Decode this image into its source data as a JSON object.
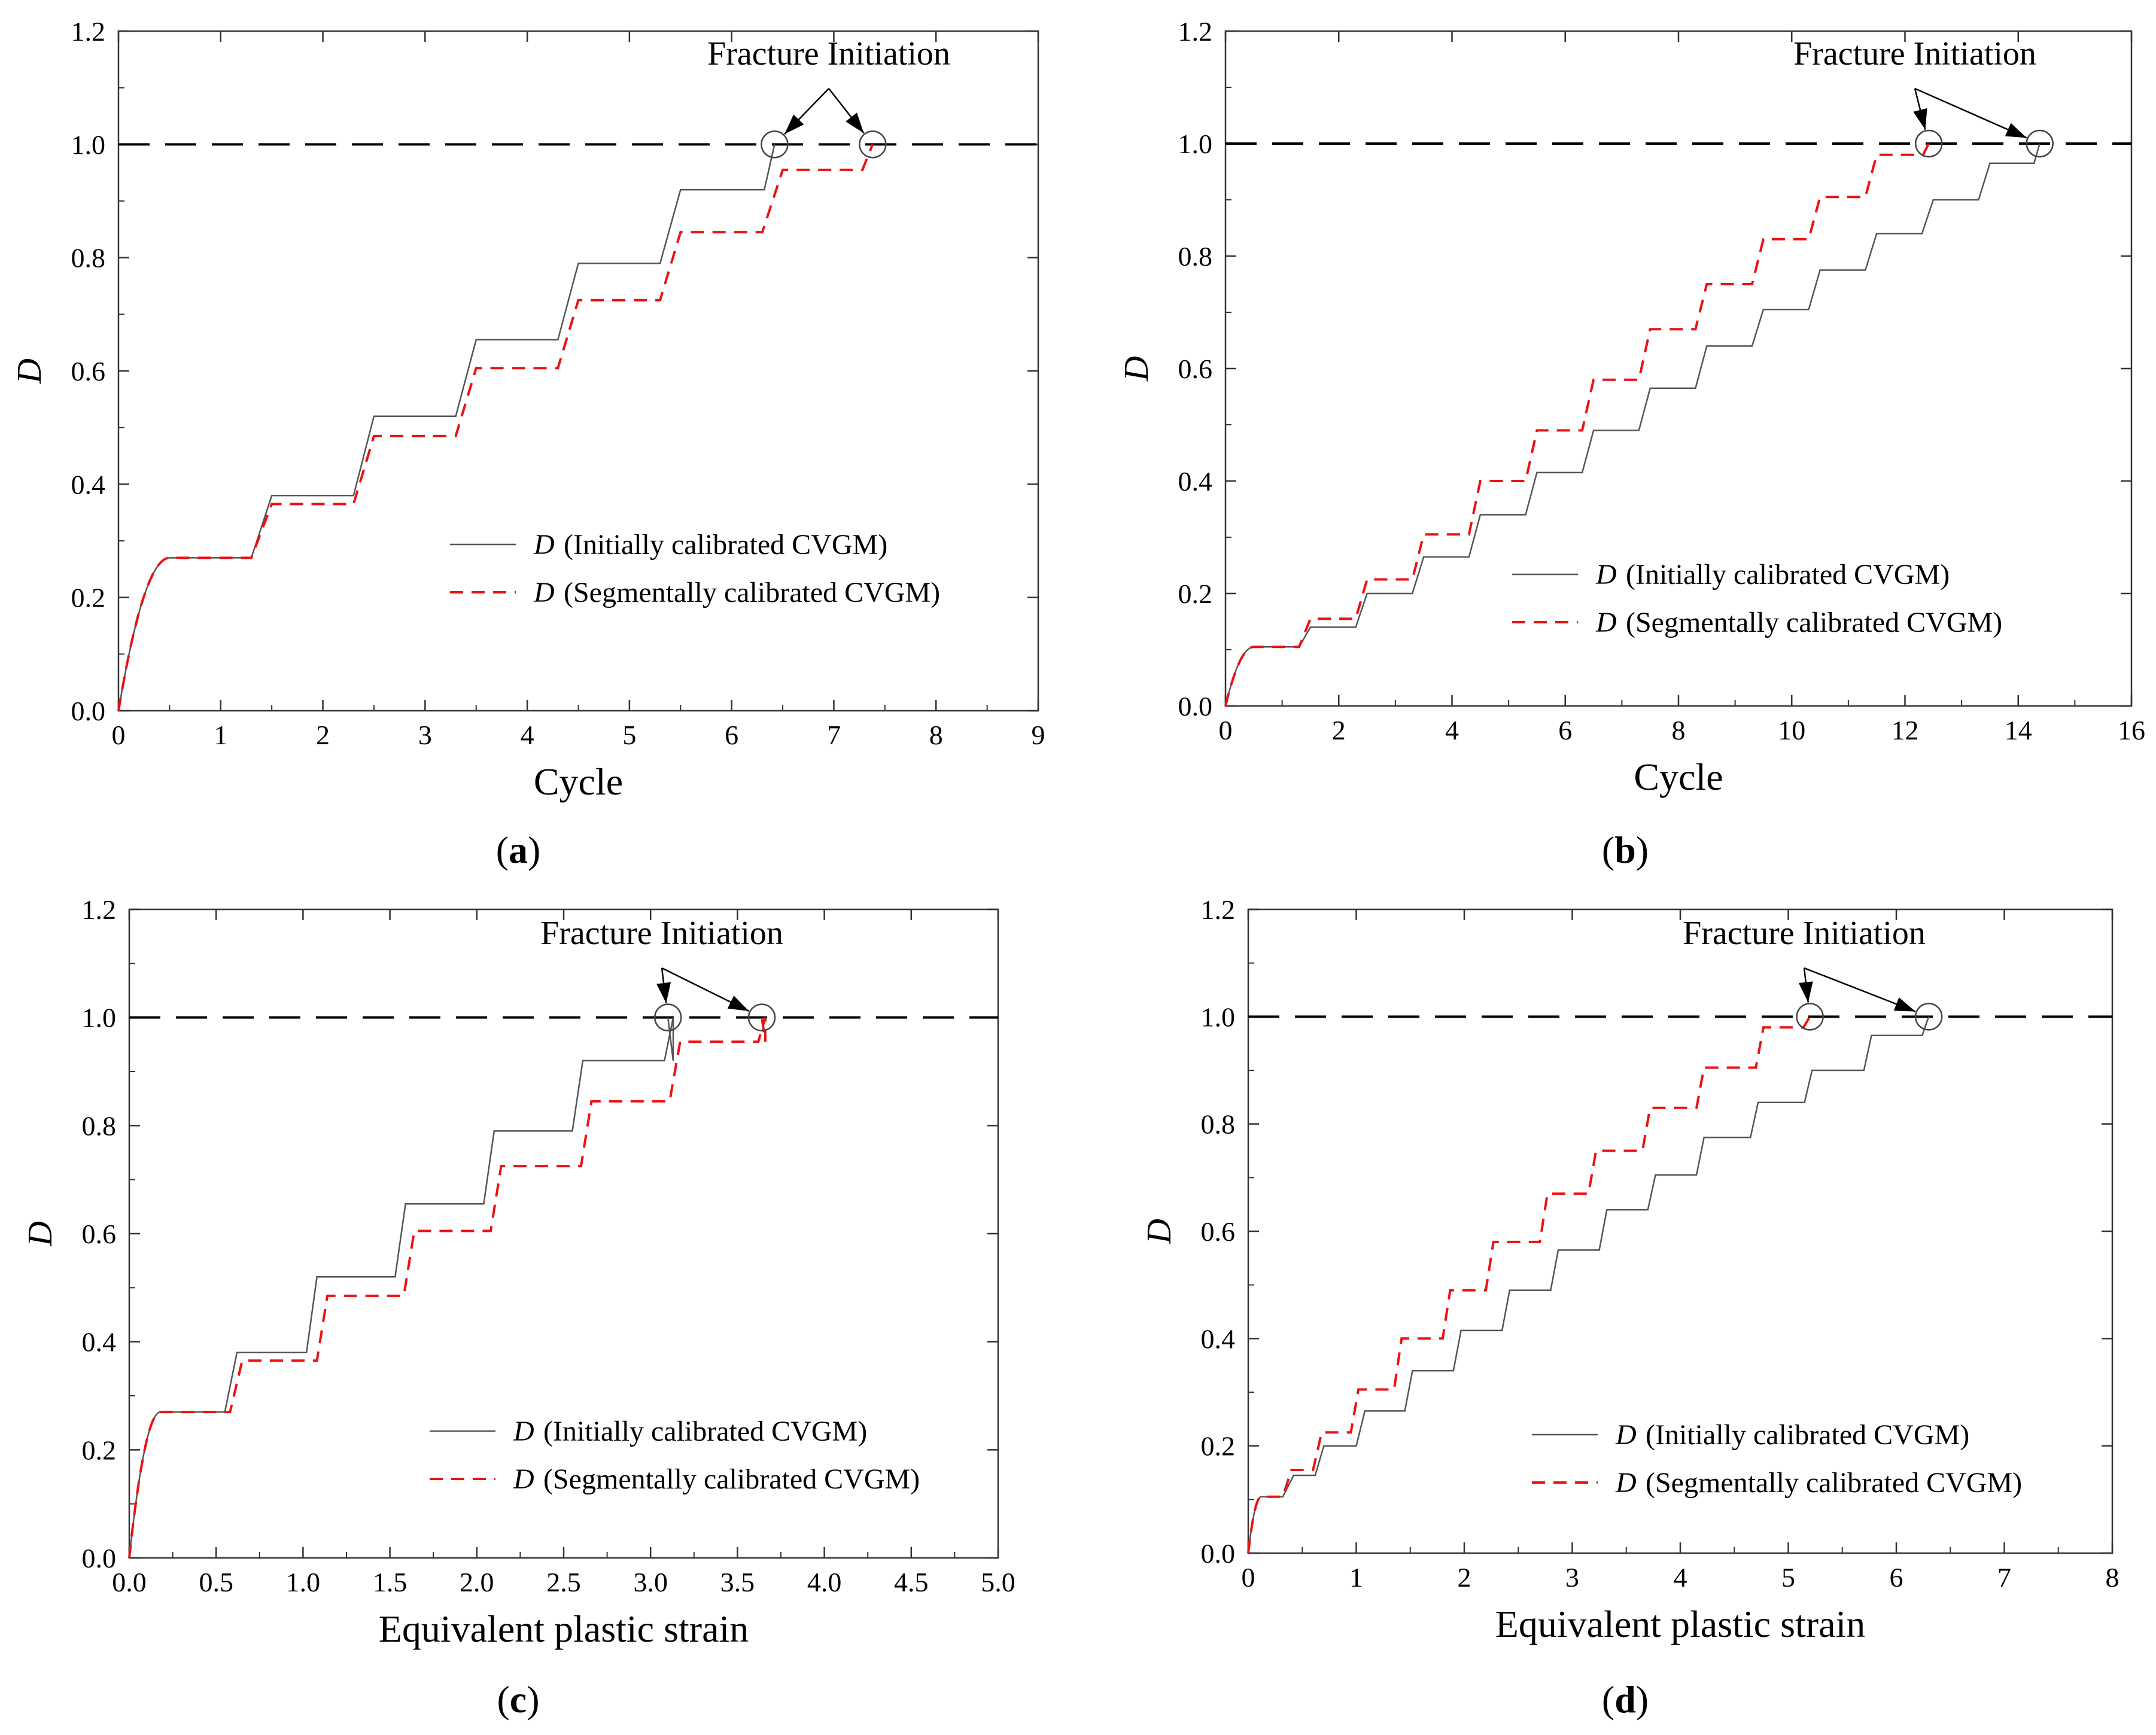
{
  "figure": {
    "description_labels": {
      "threshold_value": 1.0
    }
  },
  "chart_data": [
    {
      "id": "a",
      "type": "line",
      "panel_label": "a",
      "xlabel": "Cycle",
      "ylabel": "D",
      "xlim": [
        0,
        9
      ],
      "ylim": [
        0,
        1.2
      ],
      "xticks": [
        0,
        1,
        2,
        3,
        4,
        5,
        6,
        7,
        8,
        9
      ],
      "xtick_labels": [
        "0",
        "1",
        "2",
        "3",
        "4",
        "5",
        "6",
        "7",
        "8",
        "9"
      ],
      "yticks": [
        0,
        0.2,
        0.4,
        0.6,
        0.8,
        1.0,
        1.2
      ],
      "ytick_labels": [
        "0.0",
        "0.2",
        "0.4",
        "0.6",
        "0.8",
        "1.0",
        "1.2"
      ],
      "threshold": 1.0,
      "annotation": "Fracture Initiation",
      "legend": {
        "placement": "center-right",
        "symbol": "D",
        "entries": [
          "(Initially calibrated CVGM)",
          "(Segmentally calibrated CVGM)"
        ]
      },
      "series": [
        {
          "name": "D (Initially calibrated CVGM)",
          "style": "solid",
          "color": "#555555",
          "start_value": 0.0,
          "initial_curve": {
            "x_end": 0.5,
            "y_end": 0.27
          },
          "plateaus": [
            0.27,
            0.38,
            0.52,
            0.655,
            0.79,
            0.92
          ],
          "step_start_offset": 0.3,
          "step_end_offset": 0.5,
          "fracture_x": 6.42
        },
        {
          "name": "D (Segmentally calibrated CVGM)",
          "style": "dashed",
          "color": "#ee1111",
          "start_value": 0.0,
          "initial_curve": {
            "x_end": 0.5,
            "y_end": 0.27
          },
          "plateaus": [
            0.27,
            0.365,
            0.485,
            0.605,
            0.725,
            0.845,
            0.955
          ],
          "step_start_offset": 0.3,
          "step_end_offset": 0.5,
          "fracture_x": 7.38
        }
      ]
    },
    {
      "id": "b",
      "type": "line",
      "panel_label": "b",
      "xlabel": "Cycle",
      "ylabel": "D",
      "xlim": [
        0,
        16
      ],
      "ylim": [
        0,
        1.2
      ],
      "xticks": [
        0,
        2,
        4,
        6,
        8,
        10,
        12,
        14,
        16
      ],
      "xtick_labels": [
        "0",
        "2",
        "4",
        "6",
        "8",
        "10",
        "12",
        "14",
        "16"
      ],
      "yticks": [
        0,
        0.2,
        0.4,
        0.6,
        0.8,
        1.0,
        1.2
      ],
      "ytick_labels": [
        "0.0",
        "0.2",
        "0.4",
        "0.6",
        "0.8",
        "1.0",
        "1.2"
      ],
      "threshold": 1.0,
      "annotation": "Fracture Initiation",
      "legend": {
        "placement": "center-right",
        "symbol": "D",
        "entries": [
          "(Initially calibrated CVGM)",
          "(Segmentally calibrated CVGM)"
        ]
      },
      "series": [
        {
          "name": "D (Initially calibrated CVGM)",
          "style": "solid",
          "color": "#555555",
          "start_value": 0.0,
          "initial_curve": {
            "x_end": 0.5,
            "y_end": 0.105
          },
          "plateaus": [
            0.105,
            0.14,
            0.2,
            0.265,
            0.34,
            0.415,
            0.49,
            0.565,
            0.64,
            0.705,
            0.775,
            0.84,
            0.9,
            0.965
          ],
          "step_start_offset": 0.3,
          "step_end_offset": 0.5,
          "fracture_x": 14.38
        },
        {
          "name": "D (Segmentally calibrated CVGM)",
          "style": "dashed",
          "color": "#ee1111",
          "start_value": 0.0,
          "initial_curve": {
            "x_end": 0.5,
            "y_end": 0.105
          },
          "plateaus": [
            0.105,
            0.155,
            0.225,
            0.305,
            0.4,
            0.49,
            0.58,
            0.67,
            0.75,
            0.83,
            0.905,
            0.98
          ],
          "step_start_offset": 0.3,
          "step_end_offset": 0.5,
          "fracture_x": 12.42
        }
      ]
    },
    {
      "id": "c",
      "type": "line",
      "panel_label": "c",
      "xlabel": "Equivalent plastic strain",
      "ylabel": "D",
      "xlim": [
        0,
        5.0
      ],
      "ylim": [
        0,
        1.2
      ],
      "xticks": [
        0,
        0.5,
        1.0,
        1.5,
        2.0,
        2.5,
        3.0,
        3.5,
        4.0,
        4.5,
        5.0
      ],
      "xtick_labels": [
        "0.0",
        "0.5",
        "1.0",
        "1.5",
        "2.0",
        "2.5",
        "3.0",
        "3.5",
        "4.0",
        "4.5",
        "5.0"
      ],
      "yticks": [
        0,
        0.2,
        0.4,
        0.6,
        0.8,
        1.0,
        1.2
      ],
      "ytick_labels": [
        "0.0",
        "0.2",
        "0.4",
        "0.6",
        "0.8",
        "1.0",
        "1.2"
      ],
      "threshold": 1.0,
      "annotation": "Fracture Initiation",
      "legend": {
        "placement": "center-right",
        "symbol": "D",
        "entries": [
          "(Initially calibrated CVGM)",
          "(Segmentally calibrated CVGM)"
        ]
      },
      "series": [
        {
          "name": "D (Initially calibrated CVGM)",
          "style": "solid",
          "color": "#555555",
          "start_value": 0.0,
          "initial_curve": {
            "x_end": 0.18,
            "y_end": 0.27
          },
          "step_xs": [
            [
              0.55,
              0.62
            ],
            [
              1.02,
              1.08
            ],
            [
              1.53,
              1.59
            ],
            [
              2.04,
              2.1
            ],
            [
              2.55,
              2.61
            ],
            [
              3.08,
              3.13
            ]
          ],
          "plateaus": [
            0.27,
            0.38,
            0.52,
            0.655,
            0.79,
            0.92
          ],
          "fracture_x": 3.1
        },
        {
          "name": "D (Segmentally calibrated CVGM)",
          "style": "dashed",
          "color": "#ee1111",
          "start_value": 0.0,
          "initial_curve": {
            "x_end": 0.18,
            "y_end": 0.27
          },
          "step_xs": [
            [
              0.58,
              0.65
            ],
            [
              1.08,
              1.14
            ],
            [
              1.58,
              1.64
            ],
            [
              2.08,
              2.14
            ],
            [
              2.6,
              2.66
            ],
            [
              3.11,
              3.17
            ],
            [
              3.62,
              3.66
            ]
          ],
          "plateaus": [
            0.27,
            0.365,
            0.485,
            0.605,
            0.725,
            0.845,
            0.955
          ],
          "fracture_x": 3.64
        }
      ]
    },
    {
      "id": "d",
      "type": "line",
      "panel_label": "d",
      "xlabel": "Equivalent plastic strain",
      "ylabel": "D",
      "xlim": [
        0,
        8
      ],
      "ylim": [
        0,
        1.2
      ],
      "xticks": [
        0,
        1,
        2,
        3,
        4,
        5,
        6,
        7,
        8
      ],
      "xtick_labels": [
        "0",
        "1",
        "2",
        "3",
        "4",
        "5",
        "6",
        "7",
        "8"
      ],
      "yticks": [
        0,
        0.2,
        0.4,
        0.6,
        0.8,
        1.0,
        1.2
      ],
      "ytick_labels": [
        "0.0",
        "0.2",
        "0.4",
        "0.6",
        "0.8",
        "1.0",
        "1.2"
      ],
      "threshold": 1.0,
      "annotation": "Fracture Initiation",
      "legend": {
        "placement": "center-right",
        "symbol": "D",
        "entries": [
          "(Initially calibrated CVGM)",
          "(Segmentally calibrated CVGM)"
        ]
      },
      "series": [
        {
          "name": "D (Initially calibrated CVGM)",
          "style": "solid",
          "color": "#555555",
          "start_value": 0.0,
          "initial_curve": {
            "x_end": 0.12,
            "y_end": 0.105
          },
          "step_xs": [
            [
              0.32,
              0.42
            ],
            [
              0.62,
              0.7
            ],
            [
              1.0,
              1.08
            ],
            [
              1.45,
              1.52
            ],
            [
              1.9,
              1.97
            ],
            [
              2.35,
              2.42
            ],
            [
              2.8,
              2.87
            ],
            [
              3.25,
              3.32
            ],
            [
              3.7,
              3.77
            ],
            [
              4.15,
              4.22
            ],
            [
              4.65,
              4.72
            ],
            [
              5.15,
              5.22
            ],
            [
              5.7,
              5.77
            ]
          ],
          "plateaus": [
            0.105,
            0.145,
            0.2,
            0.265,
            0.34,
            0.415,
            0.49,
            0.565,
            0.64,
            0.705,
            0.775,
            0.84,
            0.9,
            0.965
          ],
          "fracture_x": 6.3
        },
        {
          "name": "D (Segmentally calibrated CVGM)",
          "style": "dashed",
          "color": "#ee1111",
          "start_value": 0.0,
          "initial_curve": {
            "x_end": 0.12,
            "y_end": 0.105
          },
          "step_xs": [
            [
              0.32,
              0.4
            ],
            [
              0.6,
              0.68
            ],
            [
              0.95,
              1.02
            ],
            [
              1.35,
              1.42
            ],
            [
              1.8,
              1.87
            ],
            [
              2.2,
              2.27
            ],
            [
              2.7,
              2.77
            ],
            [
              3.15,
              3.22
            ],
            [
              3.65,
              3.72
            ],
            [
              4.15,
              4.22
            ],
            [
              4.7,
              4.77
            ]
          ],
          "plateaus": [
            0.105,
            0.155,
            0.225,
            0.305,
            0.4,
            0.49,
            0.58,
            0.67,
            0.75,
            0.83,
            0.905,
            0.98
          ],
          "fracture_x": 5.2
        }
      ]
    }
  ]
}
